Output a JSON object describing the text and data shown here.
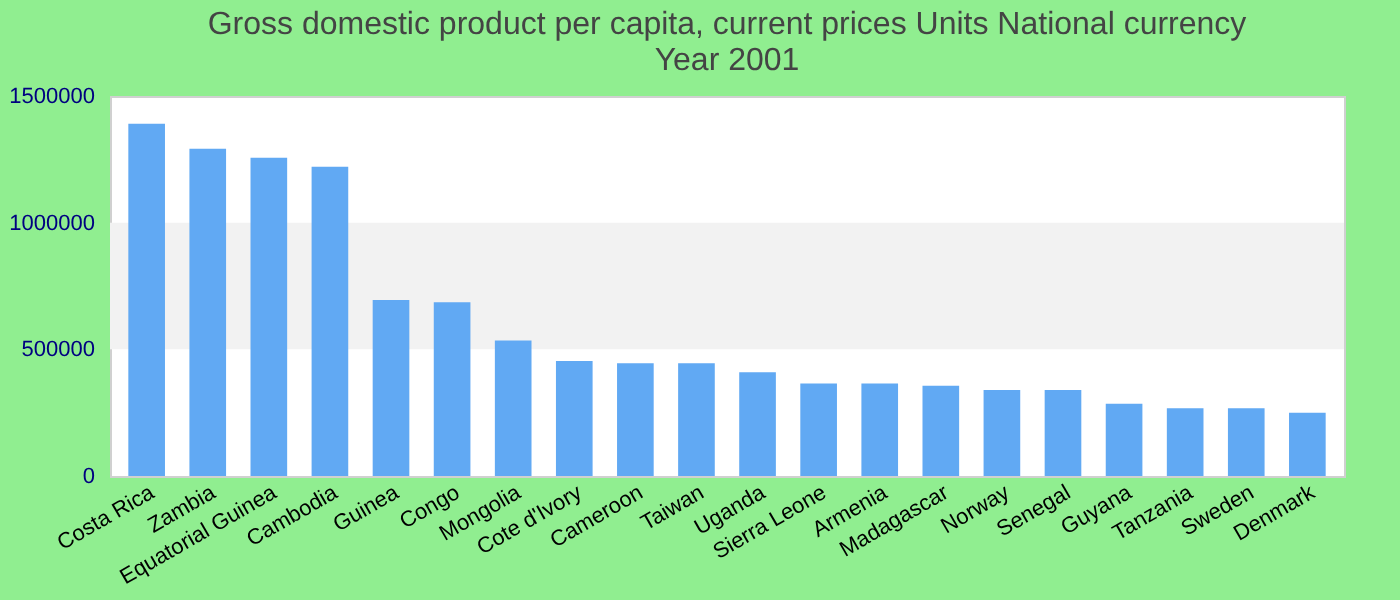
{
  "chart_data": {
    "type": "bar",
    "title": [
      "Gross domestic product per capita, current prices Units National currency",
      "Year 2001"
    ],
    "categories": [
      "Costa Rica",
      "Zambia",
      "Equatorial Guinea",
      "Cambodia",
      "Guinea",
      "Congo",
      "Mongolia",
      "Cote d'Ivory",
      "Cameroon",
      "Taiwan",
      "Uganda",
      "Sierra Leone",
      "Armenia",
      "Madagascar",
      "Norway",
      "Senegal",
      "Guyana",
      "Tanzania",
      "Sweden",
      "Denmark"
    ],
    "values": [
      1390000,
      1292000,
      1256000,
      1221000,
      695000,
      686000,
      535000,
      454000,
      445000,
      445000,
      410000,
      365000,
      365000,
      356000,
      339000,
      339000,
      285000,
      267000,
      267000,
      250000
    ],
    "color": "#61a9f3",
    "ylim": [
      0,
      1500000
    ],
    "yticks": [
      0,
      500000,
      1000000,
      1500000
    ],
    "bands": [
      {
        "axis": "y",
        "from": 500000,
        "to": 1000000,
        "color": "#f2f2f2"
      }
    ]
  }
}
